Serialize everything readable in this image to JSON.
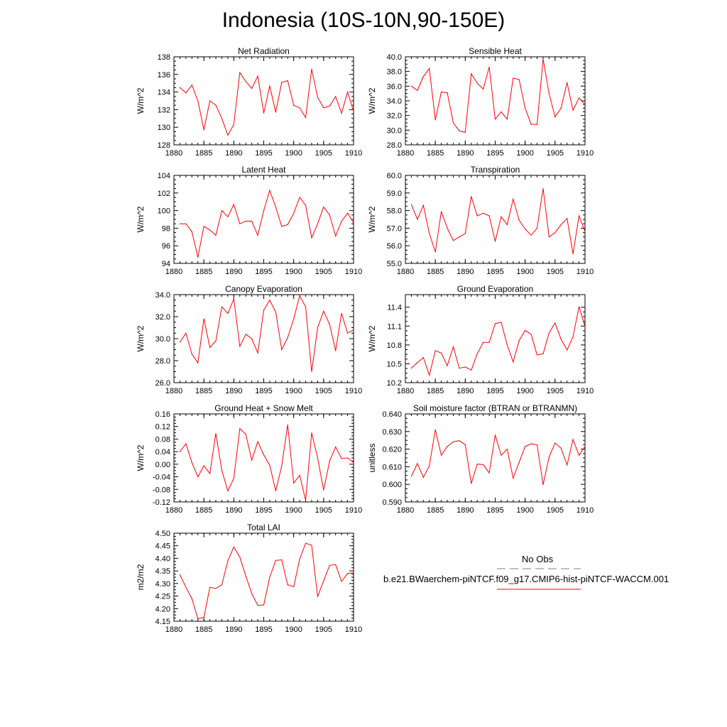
{
  "page_title": "Indonesia (10S-10N,90-150E)",
  "legend": {
    "obs_label": "No Obs",
    "case_label": "b.e21.BWaerchem-piNTCF.f09_g17.CMIP6-hist-piNTCF-WACCM.001",
    "obs_color": "#808080",
    "case_color": "#ff0000"
  },
  "chart_data": [
    {
      "type": "line",
      "title": "Net Radiation",
      "xlabel": "",
      "ylabel": "W/m^2",
      "xlim": [
        1880,
        1910
      ],
      "ylim": [
        128,
        138
      ],
      "xticks": [
        1880,
        1885,
        1890,
        1895,
        1900,
        1905,
        1910
      ],
      "yticks": [
        "128",
        "130",
        "132",
        "134",
        "136",
        "138"
      ],
      "series": [
        {
          "color": "#ff0000",
          "x": [
            1881,
            1882,
            1883,
            1884,
            1885,
            1886,
            1887,
            1888,
            1889,
            1890,
            1891,
            1892,
            1893,
            1894,
            1895,
            1896,
            1897,
            1898,
            1899,
            1900,
            1901,
            1902,
            1903,
            1904,
            1905,
            1906,
            1907,
            1908,
            1909,
            1910
          ],
          "values": [
            134.5,
            133.9,
            134.8,
            133.0,
            129.7,
            133.0,
            132.5,
            131.0,
            129.1,
            130.3,
            136.2,
            135.2,
            134.4,
            135.8,
            131.6,
            134.7,
            131.7,
            135.1,
            135.3,
            132.5,
            132.2,
            131.1,
            136.6,
            133.4,
            132.2,
            132.4,
            133.5,
            131.6,
            134.0,
            131.8
          ]
        }
      ]
    },
    {
      "type": "line",
      "title": "Sensible Heat",
      "xlabel": "",
      "ylabel": "W/m^2",
      "xlim": [
        1880,
        1910
      ],
      "ylim": [
        28,
        40
      ],
      "xticks": [
        1880,
        1885,
        1890,
        1895,
        1900,
        1905,
        1910
      ],
      "yticks": [
        "28.0",
        "30.0",
        "32.0",
        "34.0",
        "36.0",
        "38.0",
        "40.0"
      ],
      "series": [
        {
          "color": "#ff0000",
          "x": [
            1881,
            1882,
            1883,
            1884,
            1885,
            1886,
            1887,
            1888,
            1889,
            1890,
            1891,
            1892,
            1893,
            1894,
            1895,
            1896,
            1897,
            1898,
            1899,
            1900,
            1901,
            1902,
            1903,
            1904,
            1905,
            1906,
            1907,
            1908,
            1909,
            1910
          ],
          "values": [
            36.0,
            35.4,
            37.3,
            38.4,
            31.4,
            35.2,
            35.1,
            31.0,
            29.9,
            29.7,
            37.7,
            36.4,
            35.6,
            38.6,
            31.5,
            32.5,
            31.5,
            37.1,
            36.9,
            33.0,
            30.8,
            30.8,
            39.7,
            35.0,
            31.8,
            33.0,
            36.5,
            32.7,
            34.4,
            33.5
          ]
        }
      ]
    },
    {
      "type": "line",
      "title": "Latent Heat",
      "xlabel": "",
      "ylabel": "W/m^2",
      "xlim": [
        1880,
        1910
      ],
      "ylim": [
        94,
        104
      ],
      "xticks": [
        1880,
        1885,
        1890,
        1895,
        1900,
        1905,
        1910
      ],
      "yticks": [
        "94",
        "96",
        "98",
        "100",
        "102",
        "104"
      ],
      "series": [
        {
          "color": "#ff0000",
          "x": [
            1881,
            1882,
            1883,
            1884,
            1885,
            1886,
            1887,
            1888,
            1889,
            1890,
            1891,
            1892,
            1893,
            1894,
            1895,
            1896,
            1897,
            1898,
            1899,
            1900,
            1901,
            1902,
            1903,
            1904,
            1905,
            1906,
            1907,
            1908,
            1909,
            1910
          ],
          "values": [
            98.5,
            98.5,
            97.6,
            94.7,
            98.2,
            97.8,
            97.2,
            100.0,
            99.3,
            100.7,
            98.5,
            98.8,
            98.8,
            97.2,
            100.0,
            102.3,
            100.4,
            98.2,
            98.4,
            99.7,
            101.5,
            100.6,
            96.9,
            98.5,
            100.4,
            99.5,
            97.1,
            98.8,
            99.7,
            98.6
          ]
        }
      ]
    },
    {
      "type": "line",
      "title": "Transpiration",
      "xlabel": "",
      "ylabel": "W/m^2",
      "xlim": [
        1880,
        1910
      ],
      "ylim": [
        55,
        60
      ],
      "xticks": [
        1880,
        1885,
        1890,
        1895,
        1900,
        1905,
        1910
      ],
      "yticks": [
        "55.0",
        "56.0",
        "57.0",
        "58.0",
        "59.0",
        "60.0"
      ],
      "series": [
        {
          "color": "#ff0000",
          "x": [
            1881,
            1882,
            1883,
            1884,
            1885,
            1886,
            1887,
            1888,
            1889,
            1890,
            1891,
            1892,
            1893,
            1894,
            1895,
            1896,
            1897,
            1898,
            1899,
            1900,
            1901,
            1902,
            1903,
            1904,
            1905,
            1906,
            1907,
            1908,
            1909,
            1910
          ],
          "values": [
            58.35,
            57.5,
            58.3,
            56.7,
            55.65,
            57.95,
            57.0,
            56.3,
            56.5,
            56.7,
            58.8,
            57.7,
            57.85,
            57.7,
            56.25,
            57.65,
            57.2,
            58.65,
            57.45,
            56.95,
            56.6,
            57.0,
            59.25,
            56.5,
            56.75,
            57.2,
            57.55,
            55.55,
            57.7,
            56.8
          ]
        }
      ]
    },
    {
      "type": "line",
      "title": "Canopy Evaporation",
      "xlabel": "",
      "ylabel": "W/m^2",
      "xlim": [
        1880,
        1910
      ],
      "ylim": [
        26,
        34
      ],
      "xticks": [
        1880,
        1885,
        1890,
        1895,
        1900,
        1905,
        1910
      ],
      "yticks": [
        "26.0",
        "28.0",
        "30.0",
        "32.0",
        "34.0"
      ],
      "series": [
        {
          "color": "#ff0000",
          "x": [
            1881,
            1882,
            1883,
            1884,
            1885,
            1886,
            1887,
            1888,
            1889,
            1890,
            1891,
            1892,
            1893,
            1894,
            1895,
            1896,
            1897,
            1898,
            1899,
            1900,
            1901,
            1902,
            1903,
            1904,
            1905,
            1906,
            1907,
            1908,
            1909,
            1910
          ],
          "values": [
            29.7,
            30.5,
            28.6,
            27.8,
            31.8,
            29.2,
            29.8,
            32.9,
            32.3,
            33.6,
            29.3,
            30.4,
            30.0,
            28.7,
            32.6,
            33.5,
            32.4,
            29.0,
            30.1,
            31.8,
            33.9,
            32.9,
            27.0,
            31.0,
            32.5,
            31.3,
            28.9,
            32.3,
            30.5,
            30.8
          ]
        }
      ]
    },
    {
      "type": "line",
      "title": "Ground Evaporation",
      "xlabel": "",
      "ylabel": "W/m^2",
      "xlim": [
        1880,
        1910
      ],
      "ylim": [
        10.2,
        11.6
      ],
      "xticks": [
        1880,
        1885,
        1890,
        1895,
        1900,
        1905,
        1910
      ],
      "yticks": [
        "10.2",
        "10.5",
        "10.8",
        "11.1",
        "11.4"
      ],
      "yticksAt": [
        10.2,
        10.5,
        10.8,
        11.1,
        11.4
      ],
      "series": [
        {
          "color": "#ff0000",
          "x": [
            1881,
            1882,
            1883,
            1884,
            1885,
            1886,
            1887,
            1888,
            1889,
            1890,
            1891,
            1892,
            1893,
            1894,
            1895,
            1896,
            1897,
            1898,
            1899,
            1900,
            1901,
            1902,
            1903,
            1904,
            1905,
            1906,
            1907,
            1908,
            1909,
            1910
          ],
          "values": [
            10.43,
            10.52,
            10.6,
            10.32,
            10.71,
            10.67,
            10.47,
            10.77,
            10.43,
            10.45,
            10.4,
            10.66,
            10.84,
            10.84,
            11.14,
            11.16,
            10.8,
            10.53,
            10.87,
            11.03,
            10.97,
            10.64,
            10.66,
            10.99,
            11.15,
            10.89,
            10.72,
            10.93,
            11.41,
            11.09
          ]
        }
      ]
    },
    {
      "type": "line",
      "title": "Ground Heat + Snow Melt",
      "xlabel": "",
      "ylabel": "W/m^2",
      "xlim": [
        1880,
        1910
      ],
      "ylim": [
        -0.12,
        0.16
      ],
      "xticks": [
        1880,
        1885,
        1890,
        1895,
        1900,
        1905,
        1910
      ],
      "yticks": [
        "-0.12",
        "-0.08",
        "-0.04",
        "0.00",
        "0.04",
        "0.08",
        "0.12",
        "0.16"
      ],
      "series": [
        {
          "color": "#ff0000",
          "x": [
            1881,
            1882,
            1883,
            1884,
            1885,
            1886,
            1887,
            1888,
            1889,
            1890,
            1891,
            1892,
            1893,
            1894,
            1895,
            1896,
            1897,
            1898,
            1899,
            1900,
            1901,
            1902,
            1903,
            1904,
            1905,
            1906,
            1907,
            1908,
            1909,
            1910
          ],
          "values": [
            0.04,
            0.065,
            0.005,
            -0.04,
            -0.005,
            -0.03,
            0.098,
            -0.02,
            -0.085,
            -0.045,
            0.113,
            0.095,
            0.013,
            0.072,
            0.03,
            -0.003,
            -0.085,
            -0.005,
            0.125,
            -0.06,
            -0.035,
            -0.115,
            0.1,
            0.02,
            -0.082,
            0.01,
            0.055,
            0.018,
            0.02,
            0.005
          ]
        }
      ]
    },
    {
      "type": "line",
      "title": "Soil moisture factor (BTRAN or BTRANMN)",
      "xlabel": "",
      "ylabel": "unitless",
      "xlim": [
        1880,
        1910
      ],
      "ylim": [
        0.59,
        0.64
      ],
      "xticks": [
        1880,
        1885,
        1890,
        1895,
        1900,
        1905,
        1910
      ],
      "yticks": [
        "0.590",
        "0.600",
        "0.610",
        "0.620",
        "0.630",
        "0.640"
      ],
      "series": [
        {
          "color": "#ff0000",
          "x": [
            1881,
            1882,
            1883,
            1884,
            1885,
            1886,
            1887,
            1888,
            1889,
            1890,
            1891,
            1892,
            1893,
            1894,
            1895,
            1896,
            1897,
            1898,
            1899,
            1900,
            1901,
            1902,
            1903,
            1904,
            1905,
            1906,
            1907,
            1908,
            1909,
            1910
          ],
          "values": [
            0.6045,
            0.6118,
            0.604,
            0.6105,
            0.631,
            0.6165,
            0.6215,
            0.6242,
            0.6248,
            0.6225,
            0.6005,
            0.6115,
            0.6112,
            0.6065,
            0.628,
            0.6165,
            0.62,
            0.6035,
            0.6125,
            0.6215,
            0.623,
            0.6225,
            0.5998,
            0.6155,
            0.6235,
            0.6205,
            0.611,
            0.6255,
            0.6165,
            0.6215
          ]
        }
      ]
    },
    {
      "type": "line",
      "title": "Total LAI",
      "xlabel": "",
      "ylabel": "m2/m2",
      "xlim": [
        1880,
        1910
      ],
      "ylim": [
        4.15,
        4.5
      ],
      "xticks": [
        1880,
        1885,
        1890,
        1895,
        1900,
        1905,
        1910
      ],
      "yticks": [
        "4.15",
        "4.20",
        "4.25",
        "4.30",
        "4.35",
        "4.40",
        "4.45",
        "4.50"
      ],
      "series": [
        {
          "color": "#ff0000",
          "x": [
            1881,
            1882,
            1883,
            1884,
            1885,
            1886,
            1887,
            1888,
            1889,
            1890,
            1891,
            1892,
            1893,
            1894,
            1895,
            1896,
            1897,
            1898,
            1899,
            1900,
            1901,
            1902,
            1903,
            1904,
            1905,
            1906,
            1907,
            1908,
            1909,
            1910
          ],
          "values": [
            4.335,
            4.285,
            4.24,
            4.16,
            4.165,
            4.285,
            4.28,
            4.295,
            4.39,
            4.445,
            4.405,
            4.33,
            4.26,
            4.213,
            4.215,
            4.325,
            4.392,
            4.394,
            4.295,
            4.287,
            4.397,
            4.46,
            4.452,
            4.248,
            4.31,
            4.372,
            4.375,
            4.308,
            4.34,
            4.342
          ]
        }
      ]
    }
  ]
}
